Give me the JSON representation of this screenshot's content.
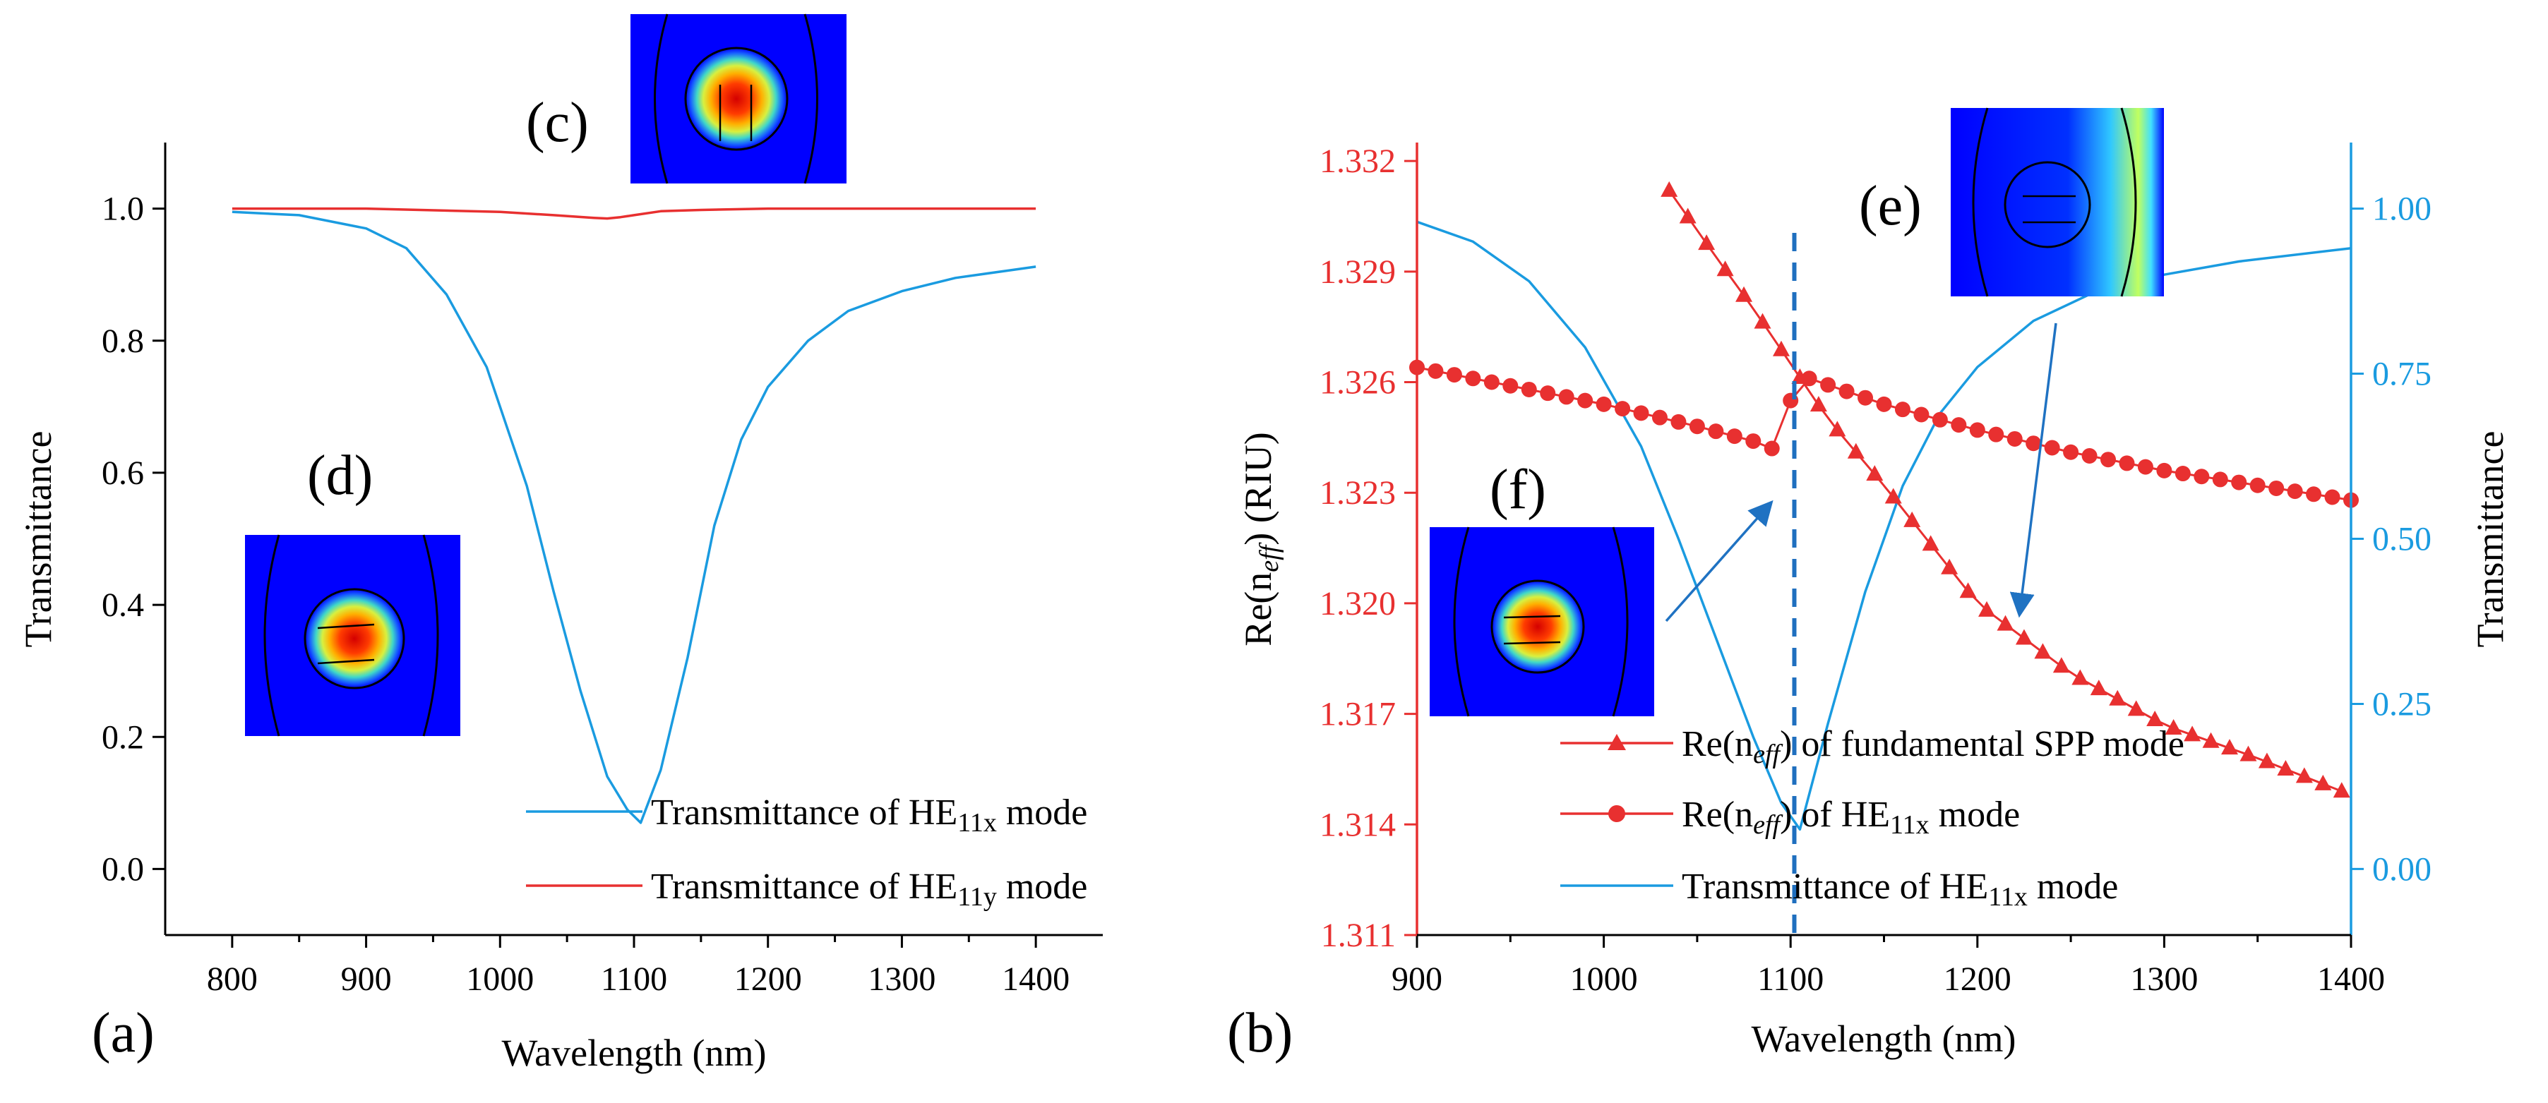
{
  "colors": {
    "red": "#e83030",
    "blue": "#1a9be0",
    "dash": "#1f6fbf",
    "arrow": "#1f72c2",
    "axis": "#000000"
  },
  "panel_labels": {
    "a": "(a)",
    "b": "(b)",
    "c": "(c)",
    "d": "(d)",
    "e": "(e)",
    "f": "(f)"
  },
  "chart_data": [
    {
      "type": "line",
      "panel": "(a)",
      "xlabel": "Wavelength (nm)",
      "ylabel": "Transmittance",
      "xlim": [
        750,
        1450
      ],
      "ylim": [
        -0.1,
        1.1
      ],
      "xticks": [
        800,
        900,
        1000,
        1100,
        1200,
        1300,
        1400
      ],
      "yticks": [
        0.0,
        0.2,
        0.4,
        0.6,
        0.8,
        1.0
      ],
      "ytick_labels": [
        "0.0",
        "0.2",
        "0.4",
        "0.6",
        "0.8",
        "1.0"
      ],
      "series": [
        {
          "name": "Transmittance of HE11x mode",
          "legend_base": "Transmittance of HE",
          "legend_sub": "11x",
          "legend_tail": " mode",
          "color": "#1a9be0",
          "x": [
            800,
            850,
            900,
            930,
            960,
            990,
            1020,
            1040,
            1060,
            1080,
            1095,
            1105,
            1120,
            1140,
            1160,
            1180,
            1200,
            1230,
            1260,
            1300,
            1340,
            1400
          ],
          "y": [
            0.995,
            0.99,
            0.97,
            0.94,
            0.87,
            0.76,
            0.58,
            0.42,
            0.27,
            0.14,
            0.09,
            0.07,
            0.15,
            0.32,
            0.52,
            0.65,
            0.73,
            0.8,
            0.845,
            0.875,
            0.895,
            0.912
          ]
        },
        {
          "name": "Transmittance of HE11y mode",
          "legend_base": "Transmittance of HE",
          "legend_sub": "11y",
          "legend_tail": " mode",
          "color": "#e83030",
          "x": [
            800,
            900,
            1000,
            1040,
            1070,
            1080,
            1090,
            1100,
            1120,
            1150,
            1200,
            1300,
            1400
          ],
          "y": [
            1.0,
            1.0,
            0.995,
            0.99,
            0.986,
            0.985,
            0.987,
            0.99,
            0.996,
            0.998,
            1.0,
            1.0,
            1.0
          ]
        }
      ]
    },
    {
      "type": "line",
      "panel": "(b)",
      "xlabel": "Wavelength (nm)",
      "ylabel_left_base": "Re(n",
      "ylabel_left_sub": "eff",
      "ylabel_left_tail": ") (RIU)",
      "ylabel_right": "Transmittance",
      "xlim": [
        900,
        1400
      ],
      "ylim_left": [
        1.311,
        1.3325
      ],
      "ylim_right": [
        -0.1,
        1.1
      ],
      "xticks": [
        900,
        1000,
        1100,
        1200,
        1300,
        1400
      ],
      "yticks_left": [
        1.311,
        1.314,
        1.317,
        1.32,
        1.323,
        1.326,
        1.329,
        1.332
      ],
      "yticks_left_labels": [
        "1.311",
        "1.314",
        "1.317",
        "1.320",
        "1.323",
        "1.326",
        "1.329",
        "1.332"
      ],
      "yticks_right": [
        0.0,
        0.25,
        0.5,
        0.75,
        1.0
      ],
      "yticks_right_labels": [
        "0.00",
        "0.25",
        "0.50",
        "0.75",
        "1.00"
      ],
      "resonance_wavelength": 1102,
      "series": [
        {
          "name": "Re(neff) of fundamental SPP mode",
          "legend_base": "Re(n",
          "legend_sub": "eff",
          "legend_tail": ") of fundamental SPP mode",
          "marker": "triangle",
          "axis": "left",
          "color": "#e83030",
          "x_start": 1035,
          "x_end": 1400,
          "x_step": 10,
          "anchors_x": [
            1035,
            1060,
            1080,
            1100,
            1120,
            1150,
            1200,
            1250,
            1300,
            1350,
            1400
          ],
          "anchors_y": [
            1.3312,
            1.3294,
            1.328,
            1.3265,
            1.325,
            1.3232,
            1.32,
            1.3181,
            1.3167,
            1.3158,
            1.3148
          ]
        },
        {
          "name": "Re(neff) of HE11x mode",
          "legend_base": "Re(n",
          "legend_sub": "eff",
          "legend_tail": ") of HE",
          "legend_sub2": "11x",
          "legend_tail2": " mode",
          "marker": "circle",
          "axis": "left",
          "color": "#e83030",
          "x_start": 900,
          "x_end": 1400,
          "x_step": 10,
          "anchors_x": [
            900,
            950,
            1000,
            1050,
            1080,
            1090,
            1095,
            1100,
            1105,
            1110,
            1150,
            1200,
            1250,
            1300,
            1350,
            1400
          ],
          "anchors_y": [
            1.3264,
            1.3259,
            1.3254,
            1.3248,
            1.3244,
            1.3242,
            1.3246,
            1.3255,
            1.3259,
            1.3261,
            1.3254,
            1.3247,
            1.3241,
            1.3236,
            1.3232,
            1.3228
          ]
        },
        {
          "name": "Transmittance of HE11x mode",
          "legend_base": "Transmittance of HE",
          "legend_sub": "11x",
          "legend_tail": " mode",
          "axis": "right",
          "color": "#1a9be0",
          "x": [
            900,
            930,
            960,
            990,
            1020,
            1040,
            1060,
            1080,
            1095,
            1105,
            1120,
            1140,
            1160,
            1180,
            1200,
            1230,
            1260,
            1300,
            1340,
            1400
          ],
          "y": [
            0.98,
            0.95,
            0.89,
            0.79,
            0.64,
            0.5,
            0.35,
            0.2,
            0.1,
            0.06,
            0.22,
            0.42,
            0.58,
            0.69,
            0.76,
            0.83,
            0.87,
            0.9,
            0.92,
            0.94
          ]
        }
      ]
    }
  ]
}
